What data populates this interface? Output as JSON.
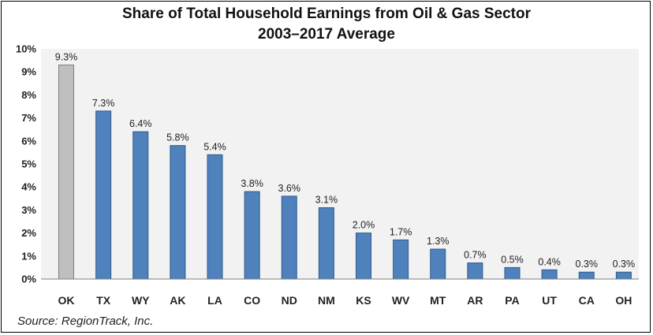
{
  "chart_data": {
    "type": "bar",
    "title": "Share of Total Household Earnings from Oil & Gas Sector",
    "subtitle": "2003–2017 Average",
    "categories": [
      "OK",
      "TX",
      "WY",
      "AK",
      "LA",
      "CO",
      "ND",
      "NM",
      "KS",
      "WV",
      "MT",
      "AR",
      "PA",
      "UT",
      "CA",
      "OH"
    ],
    "values": [
      9.3,
      7.3,
      6.4,
      5.8,
      5.4,
      3.8,
      3.6,
      3.1,
      2.0,
      1.7,
      1.3,
      0.7,
      0.5,
      0.4,
      0.3,
      0.3
    ],
    "data_labels": [
      "9.3%",
      "7.3%",
      "6.4%",
      "5.8%",
      "5.4%",
      "3.8%",
      "3.6%",
      "3.1%",
      "2.0%",
      "1.7%",
      "1.3%",
      "0.7%",
      "0.5%",
      "0.4%",
      "0.3%",
      "0.3%"
    ],
    "ylim": [
      0,
      10
    ],
    "yticks": [
      "0%",
      "1%",
      "2%",
      "3%",
      "4%",
      "5%",
      "6%",
      "7%",
      "8%",
      "9%",
      "10%"
    ],
    "xlabel": "",
    "ylabel": "",
    "grid": false,
    "highlight_category": "OK",
    "colors": {
      "bar": "#4f81bd",
      "bar_edge": "#2f5a8c",
      "highlight": "#bfbfbf",
      "highlight_edge": "#7f7f7f",
      "plot_background": "#f2f2f2",
      "axis": "#7f7f7f"
    }
  },
  "source": "Source: RegionTrack, Inc."
}
